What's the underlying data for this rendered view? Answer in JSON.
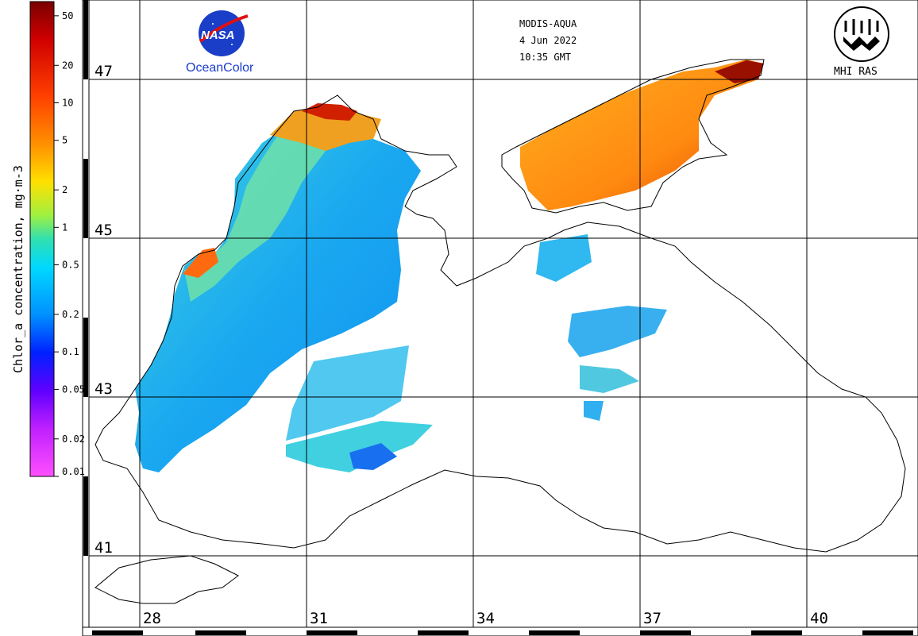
{
  "header": {
    "sensor": "MODIS-AQUA",
    "date": "4 Jun 2022",
    "time": "10:35 GMT"
  },
  "logos": {
    "nasa_text": "NASA",
    "oceancolor": "OceanColor",
    "mhi": "MHI RAS"
  },
  "colorbar": {
    "title": "Chlor_a concentration, mg·m-3",
    "ticks": [
      "50",
      "20",
      "10",
      "5",
      "2",
      "1",
      "0.5",
      "0.2",
      "0.1",
      "0.05",
      "0.02",
      "0.01"
    ],
    "colors": [
      "#6b0000",
      "#c00000",
      "#ff2000",
      "#ff8000",
      "#ffd000",
      "#c8f000",
      "#30e0a0",
      "#00d0ff",
      "#0080ff",
      "#0000ff",
      "#8000ff",
      "#ff40ff"
    ]
  },
  "axes": {
    "latitudes": [
      "47",
      "45",
      "43",
      "41"
    ],
    "longitudes": [
      "28",
      "31",
      "34",
      "37",
      "40"
    ]
  },
  "legend_colors": {
    "coast": "#000000",
    "grid": "#000000",
    "land": "#ffffff"
  }
}
